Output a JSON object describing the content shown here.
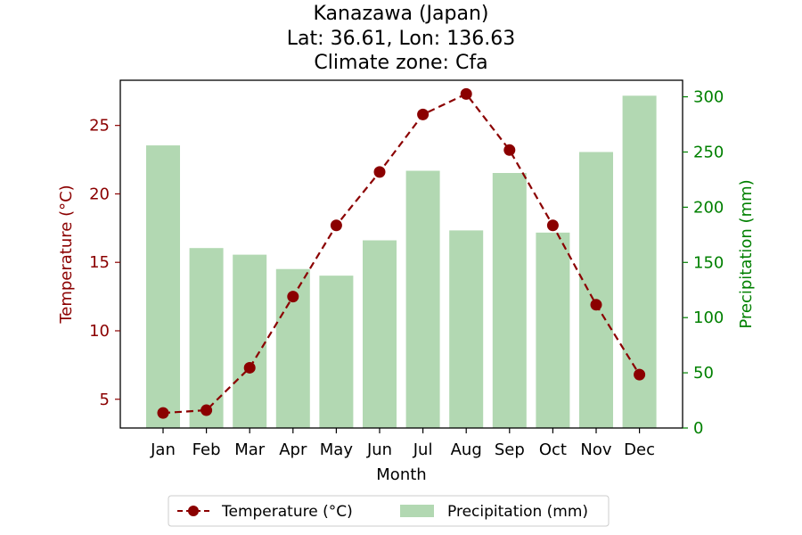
{
  "chart_data": {
    "type": "bar+line",
    "title_lines": [
      "Kanazawa (Japan)",
      "Lat: 36.61, Lon: 136.63",
      "Climate zone: Cfa"
    ],
    "xlabel": "Month",
    "categories": [
      "Jan",
      "Feb",
      "Mar",
      "Apr",
      "May",
      "Jun",
      "Jul",
      "Aug",
      "Sep",
      "Oct",
      "Nov",
      "Dec"
    ],
    "temperature": {
      "name": "Temperature (°C)",
      "axis_label": "Temperature (°C)",
      "values": [
        4.0,
        4.2,
        7.3,
        12.5,
        17.7,
        21.6,
        25.8,
        27.3,
        23.2,
        17.7,
        11.9,
        6.8
      ],
      "ylim": [
        2.9,
        28.3
      ],
      "ticks": [
        5,
        10,
        15,
        20,
        25
      ],
      "color": "#8b0000",
      "style": "dashed line with circle markers"
    },
    "precipitation": {
      "name": "Precipitation (mm)",
      "axis_label": "Precipitation (mm)",
      "values": [
        256,
        163,
        157,
        144,
        138,
        170,
        233,
        179,
        231,
        177,
        250,
        301
      ],
      "ylim": [
        0,
        315
      ],
      "ticks": [
        0,
        50,
        100,
        150,
        200,
        250,
        300
      ],
      "color": "#008000",
      "bar_color": "#b2d8b2"
    },
    "legend_position": "bottom-center, below plot",
    "grid": false
  }
}
